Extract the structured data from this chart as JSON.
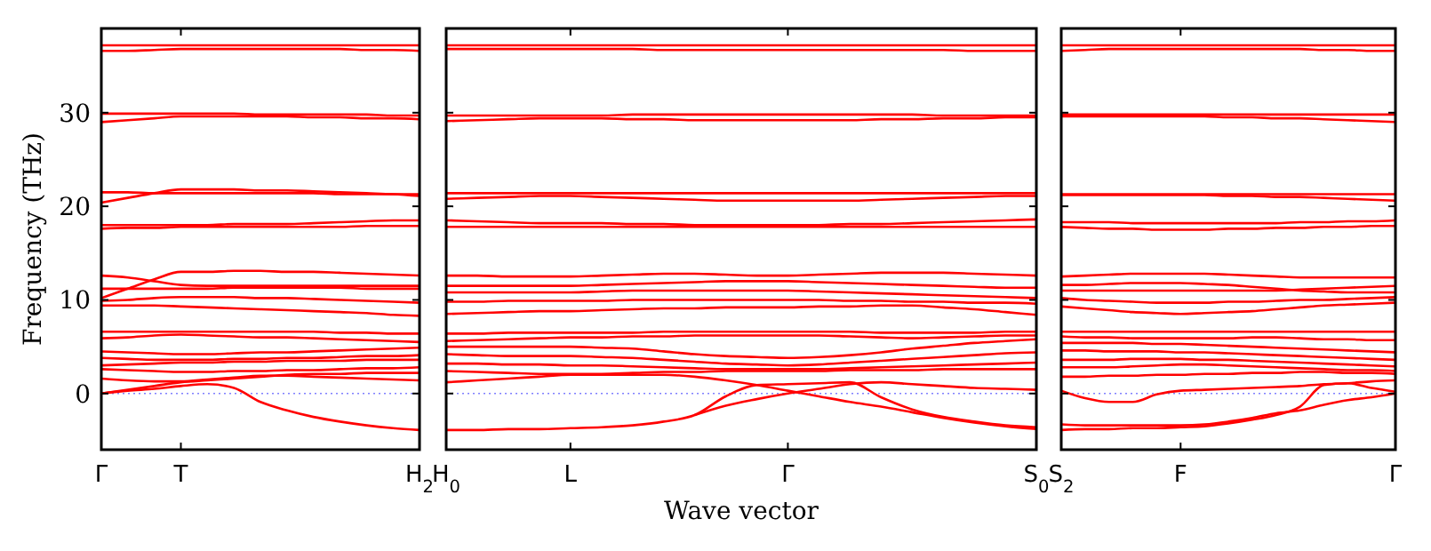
{
  "chart_data": [
    {
      "type": "line",
      "ylabel": "Frequency (THz)",
      "categories": [
        "Γ",
        null,
        null,
        "T",
        null,
        null,
        null,
        null,
        null,
        null,
        null,
        null,
        "H$_{2}$"
      ],
      "ylim": [
        -6,
        39
      ],
      "yticks": [
        0,
        10,
        20,
        30
      ],
      "ref_lines": [
        {
          "axis": "y",
          "value": 0,
          "color": "#8080ff",
          "line_style": "dotted"
        }
      ],
      "series": [
        {
          "color": "#ff0000",
          "values": [
            37.2,
            37.2,
            37.2,
            37.2,
            37.2,
            37.2,
            37.2,
            37.2,
            37.2,
            37.2,
            37.2,
            37.2,
            37.2
          ]
        },
        {
          "color": "#ff0000",
          "values": [
            36.6,
            36.6,
            36.7,
            36.8,
            36.8,
            36.8,
            36.8,
            36.8,
            36.8,
            36.8,
            36.7,
            36.7,
            36.6
          ]
        },
        {
          "color": "#ff0000",
          "values": [
            29.9,
            29.9,
            29.9,
            29.9,
            29.9,
            29.9,
            29.8,
            29.8,
            29.8,
            29.8,
            29.8,
            29.7,
            29.7
          ]
        },
        {
          "color": "#ff0000",
          "values": [
            29.0,
            29.2,
            29.4,
            29.6,
            29.6,
            29.6,
            29.6,
            29.6,
            29.5,
            29.5,
            29.4,
            29.4,
            29.3
          ]
        },
        {
          "color": "#ff0000",
          "values": [
            21.5,
            21.5,
            21.4,
            21.4,
            21.4,
            21.4,
            21.4,
            21.4,
            21.4,
            21.3,
            21.3,
            21.3,
            21.3
          ]
        },
        {
          "color": "#ff0000",
          "values": [
            20.4,
            20.9,
            21.4,
            21.8,
            21.8,
            21.8,
            21.7,
            21.7,
            21.6,
            21.5,
            21.4,
            21.3,
            21.1
          ]
        },
        {
          "color": "#ff0000",
          "values": [
            18.0,
            18.0,
            18.0,
            18.0,
            18.0,
            18.1,
            18.1,
            18.1,
            18.2,
            18.3,
            18.4,
            18.5,
            18.5
          ]
        },
        {
          "color": "#ff0000",
          "values": [
            17.6,
            17.7,
            17.7,
            17.8,
            17.8,
            17.8,
            17.8,
            17.8,
            17.8,
            17.8,
            17.9,
            17.9,
            17.9
          ]
        },
        {
          "color": "#ff0000",
          "values": [
            10.2,
            11.2,
            12.2,
            13.0,
            13.0,
            13.1,
            13.1,
            13.0,
            13.0,
            12.9,
            12.8,
            12.7,
            12.6
          ]
        },
        {
          "color": "#ff0000",
          "values": [
            12.6,
            12.4,
            12.0,
            11.6,
            11.5,
            11.5,
            11.5,
            11.5,
            11.5,
            11.5,
            11.5,
            11.5,
            11.5
          ]
        },
        {
          "color": "#ff0000",
          "values": [
            11.2,
            11.2,
            11.2,
            11.2,
            11.2,
            11.3,
            11.3,
            11.3,
            11.3,
            11.3,
            11.2,
            11.2,
            11.2
          ]
        },
        {
          "color": "#ff0000",
          "values": [
            9.9,
            10.0,
            10.2,
            10.3,
            10.3,
            10.3,
            10.2,
            10.2,
            10.1,
            10.0,
            9.9,
            9.8,
            9.7
          ]
        },
        {
          "color": "#ff0000",
          "values": [
            9.4,
            9.4,
            9.4,
            9.3,
            9.2,
            9.1,
            9.0,
            8.9,
            8.8,
            8.7,
            8.6,
            8.4,
            8.3
          ]
        },
        {
          "color": "#ff0000",
          "values": [
            6.6,
            6.6,
            6.6,
            6.6,
            6.6,
            6.6,
            6.6,
            6.6,
            6.6,
            6.5,
            6.5,
            6.4,
            6.4
          ]
        },
        {
          "color": "#ff0000",
          "values": [
            5.9,
            6.0,
            6.2,
            6.3,
            6.2,
            6.1,
            6.0,
            6.0,
            5.9,
            5.8,
            5.7,
            5.6,
            5.5
          ]
        },
        {
          "color": "#ff0000",
          "values": [
            4.5,
            4.4,
            4.3,
            4.2,
            4.2,
            4.3,
            4.4,
            4.4,
            4.5,
            4.6,
            4.7,
            4.8,
            4.9
          ]
        },
        {
          "color": "#ff0000",
          "values": [
            3.8,
            3.7,
            3.6,
            3.6,
            3.6,
            3.7,
            3.7,
            3.8,
            3.8,
            3.9,
            4.0,
            4.0,
            4.1
          ]
        },
        {
          "color": "#ff0000",
          "values": [
            3.0,
            3.1,
            3.2,
            3.3,
            3.3,
            3.4,
            3.4,
            3.5,
            3.5,
            3.5,
            3.6,
            3.6,
            3.6
          ]
        },
        {
          "color": "#ff0000",
          "values": [
            2.6,
            2.5,
            2.4,
            2.3,
            2.3,
            2.4,
            2.4,
            2.5,
            2.5,
            2.6,
            2.7,
            2.7,
            2.8
          ]
        },
        {
          "color": "#ff0000",
          "values": [
            1.6,
            1.4,
            1.3,
            1.3,
            1.5,
            1.7,
            1.9,
            1.9,
            1.8,
            1.7,
            1.6,
            1.5,
            1.4
          ]
        },
        {
          "color": "#ff0000",
          "values": [
            0,
            0.4,
            0.8,
            1.2,
            1.4,
            1.6,
            1.8,
            2.0,
            2.1,
            2.1,
            2.2,
            2.2,
            2.2
          ]
        },
        {
          "color": "#ff0000",
          "values": [
            0,
            0.3,
            0.5,
            0.8,
            1.0,
            0.6,
            -0.9,
            -1.8,
            -2.5,
            -3.0,
            -3.4,
            -3.7,
            -3.9
          ]
        }
      ]
    },
    {
      "type": "line",
      "xlabel": "Wave vector",
      "categories": [
        "H$_{0}$",
        null,
        null,
        null,
        "L",
        null,
        null,
        null,
        null,
        null,
        null,
        "Γ",
        null,
        null,
        null,
        null,
        null,
        null,
        null,
        "S$_{0}$"
      ],
      "ylim": [
        -6,
        39
      ],
      "yticks": [
        0,
        10,
        20,
        30
      ],
      "tick_labels": "x",
      "ref_lines": [
        {
          "axis": "y",
          "value": 0,
          "color": "#8080ff",
          "line_style": "dotted"
        }
      ],
      "series": [
        {
          "color": "#ff0000",
          "values": [
            37.2,
            37.2,
            37.2,
            37.2,
            37.2,
            37.2,
            37.2,
            37.2,
            37.2,
            37.2,
            37.2,
            37.2,
            37.2,
            37.2,
            37.2,
            37.2,
            37.2,
            37.2,
            37.2,
            37.2
          ]
        },
        {
          "color": "#ff0000",
          "values": [
            36.8,
            36.8,
            36.8,
            36.8,
            36.8,
            36.8,
            36.8,
            36.7,
            36.7,
            36.7,
            36.7,
            36.7,
            36.7,
            36.7,
            36.7,
            36.7,
            36.7,
            36.6,
            36.6,
            36.6
          ]
        },
        {
          "color": "#ff0000",
          "values": [
            29.7,
            29.7,
            29.7,
            29.7,
            29.7,
            29.7,
            29.8,
            29.8,
            29.8,
            29.8,
            29.8,
            29.8,
            29.8,
            29.8,
            29.8,
            29.8,
            29.7,
            29.7,
            29.7,
            29.7
          ]
        },
        {
          "color": "#ff0000",
          "values": [
            29.1,
            29.2,
            29.3,
            29.4,
            29.4,
            29.4,
            29.3,
            29.3,
            29.2,
            29.2,
            29.2,
            29.2,
            29.2,
            29.2,
            29.3,
            29.3,
            29.4,
            29.4,
            29.5,
            29.5
          ]
        },
        {
          "color": "#ff0000",
          "values": [
            21.4,
            21.4,
            21.4,
            21.4,
            21.4,
            21.4,
            21.4,
            21.4,
            21.4,
            21.4,
            21.4,
            21.4,
            21.4,
            21.4,
            21.4,
            21.4,
            21.4,
            21.4,
            21.4,
            21.4
          ]
        },
        {
          "color": "#ff0000",
          "values": [
            20.8,
            20.9,
            21.0,
            21.1,
            21.1,
            21.0,
            20.9,
            20.8,
            20.7,
            20.6,
            20.6,
            20.6,
            20.6,
            20.6,
            20.7,
            20.8,
            20.9,
            21.0,
            21.1,
            21.1
          ]
        },
        {
          "color": "#ff0000",
          "values": [
            18.5,
            18.4,
            18.3,
            18.2,
            18.2,
            18.2,
            18.1,
            18.1,
            18.0,
            18.0,
            18.0,
            18.0,
            18.0,
            18.1,
            18.1,
            18.2,
            18.3,
            18.4,
            18.5,
            18.6
          ]
        },
        {
          "color": "#ff0000",
          "values": [
            17.8,
            17.8,
            17.8,
            17.8,
            17.8,
            17.8,
            17.8,
            17.8,
            17.8,
            17.8,
            17.8,
            17.8,
            17.8,
            17.8,
            17.8,
            17.8,
            17.8,
            17.8,
            17.8,
            17.8
          ]
        },
        {
          "color": "#ff0000",
          "values": [
            12.6,
            12.6,
            12.5,
            12.5,
            12.5,
            12.6,
            12.7,
            12.8,
            12.8,
            12.7,
            12.6,
            12.6,
            12.7,
            12.8,
            12.9,
            12.9,
            12.9,
            12.8,
            12.7,
            12.6
          ]
        },
        {
          "color": "#ff0000",
          "values": [
            11.5,
            11.5,
            11.5,
            11.5,
            11.5,
            11.6,
            11.7,
            11.8,
            11.9,
            12.0,
            12.0,
            12.0,
            11.9,
            11.8,
            11.7,
            11.6,
            11.5,
            11.4,
            11.3,
            11.3
          ]
        },
        {
          "color": "#ff0000",
          "values": [
            10.8,
            10.8,
            10.8,
            10.8,
            10.8,
            10.9,
            11.0,
            11.0,
            11.0,
            11.0,
            11.0,
            11.0,
            10.9,
            10.8,
            10.7,
            10.6,
            10.5,
            10.4,
            10.3,
            10.2
          ]
        },
        {
          "color": "#ff0000",
          "values": [
            9.8,
            9.8,
            9.9,
            9.9,
            9.9,
            9.9,
            10.0,
            10.0,
            10.0,
            10.0,
            10.0,
            10.0,
            10.0,
            9.9,
            9.9,
            9.8,
            9.8,
            9.7,
            9.7,
            9.6
          ]
        },
        {
          "color": "#ff0000",
          "values": [
            8.5,
            8.6,
            8.7,
            8.8,
            8.8,
            8.9,
            9.0,
            9.1,
            9.1,
            9.2,
            9.2,
            9.2,
            9.3,
            9.3,
            9.4,
            9.4,
            9.2,
            9.0,
            8.7,
            8.4
          ]
        },
        {
          "color": "#ff0000",
          "values": [
            6.4,
            6.4,
            6.5,
            6.5,
            6.5,
            6.5,
            6.5,
            6.6,
            6.6,
            6.6,
            6.6,
            6.6,
            6.6,
            6.6,
            6.5,
            6.5,
            6.5,
            6.5,
            6.6,
            6.6
          ]
        },
        {
          "color": "#ff0000",
          "values": [
            5.6,
            5.7,
            5.8,
            5.9,
            6.0,
            6.0,
            6.1,
            6.1,
            6.2,
            6.2,
            6.2,
            6.2,
            6.2,
            6.1,
            6.0,
            5.9,
            6.0,
            6.1,
            6.2,
            6.2
          ]
        },
        {
          "color": "#ff0000",
          "values": [
            5.0,
            5.0,
            5.0,
            5.0,
            5.0,
            4.9,
            4.8,
            4.5,
            4.2,
            4.0,
            3.9,
            3.8,
            3.9,
            4.1,
            4.4,
            4.8,
            5.1,
            5.4,
            5.6,
            5.8
          ]
        },
        {
          "color": "#ff0000",
          "values": [
            4.2,
            4.1,
            4.0,
            4.0,
            4.0,
            3.9,
            3.8,
            3.6,
            3.4,
            3.2,
            3.1,
            3.0,
            3.1,
            3.3,
            3.5,
            3.7,
            3.9,
            4.1,
            4.3,
            4.4
          ]
        },
        {
          "color": "#ff0000",
          "values": [
            3.2,
            3.2,
            3.1,
            3.1,
            3.0,
            3.0,
            2.9,
            2.8,
            2.7,
            2.6,
            2.6,
            2.6,
            2.6,
            2.7,
            2.8,
            2.9,
            3.0,
            3.1,
            3.2,
            3.3
          ]
        },
        {
          "color": "#ff0000",
          "values": [
            2.4,
            2.3,
            2.2,
            2.1,
            2.1,
            2.1,
            2.2,
            2.3,
            2.3,
            2.4,
            2.4,
            2.4,
            2.4,
            2.5,
            2.5,
            2.5,
            2.6,
            2.6,
            2.6,
            2.6
          ]
        },
        {
          "color": "#ff0000",
          "values": [
            1.2,
            1.4,
            1.6,
            1.8,
            2.0,
            2.0,
            2.0,
            2.0,
            1.8,
            1.4,
            0.9,
            0.3,
            -0.3,
            -0.9,
            -1.4,
            -2.0,
            -2.6,
            -3.1,
            -3.5,
            -3.8
          ]
        },
        {
          "color": "#ff0000",
          "values": [
            -3.9,
            -3.9,
            -3.8,
            -3.8,
            -3.7,
            -3.6,
            -3.4,
            -3.0,
            -2.3,
            -0.3,
            0.9,
            1.0,
            1.1,
            1.2,
            -0.4,
            -1.7,
            -2.5,
            -3.0,
            -3.4,
            -3.6
          ]
        },
        {
          "color": "#ff0000",
          "values": [
            null,
            null,
            null,
            null,
            null,
            null,
            null,
            null,
            -2.3,
            -1.3,
            -0.6,
            0,
            0.5,
            1.0,
            1.2,
            1.0,
            0.8,
            0.6,
            0.5,
            0.4
          ]
        }
      ]
    },
    {
      "type": "line",
      "categories": [
        "S$_{2}$",
        null,
        null,
        null,
        null,
        "F",
        null,
        null,
        null,
        null,
        null,
        null,
        null,
        null,
        "Γ"
      ],
      "ylim": [
        -6,
        39
      ],
      "yticks": [
        0,
        10,
        20,
        30
      ],
      "tick_labels": "x",
      "ref_lines": [
        {
          "axis": "y",
          "value": 0,
          "color": "#8080ff",
          "line_style": "dotted"
        }
      ],
      "series": [
        {
          "color": "#ff0000",
          "values": [
            37.2,
            37.2,
            37.2,
            37.2,
            37.2,
            37.2,
            37.2,
            37.2,
            37.2,
            37.2,
            37.2,
            37.2,
            37.2,
            37.2,
            37.2
          ]
        },
        {
          "color": "#ff0000",
          "values": [
            36.6,
            36.7,
            36.8,
            36.8,
            36.8,
            36.8,
            36.8,
            36.8,
            36.8,
            36.8,
            36.8,
            36.7,
            36.7,
            36.6,
            36.6
          ]
        },
        {
          "color": "#ff0000",
          "values": [
            29.8,
            29.8,
            29.8,
            29.8,
            29.8,
            29.8,
            29.8,
            29.8,
            29.8,
            29.8,
            29.8,
            29.8,
            29.8,
            29.8,
            29.8
          ]
        },
        {
          "color": "#ff0000",
          "values": [
            29.6,
            29.6,
            29.6,
            29.6,
            29.6,
            29.6,
            29.6,
            29.5,
            29.5,
            29.4,
            29.4,
            29.3,
            29.2,
            29.1,
            29.0
          ]
        },
        {
          "color": "#ff0000",
          "values": [
            21.3,
            21.3,
            21.3,
            21.3,
            21.3,
            21.3,
            21.3,
            21.3,
            21.3,
            21.3,
            21.3,
            21.3,
            21.3,
            21.3,
            21.3
          ]
        },
        {
          "color": "#ff0000",
          "values": [
            21.2,
            21.2,
            21.2,
            21.2,
            21.2,
            21.2,
            21.2,
            21.1,
            21.1,
            21.0,
            21.0,
            20.9,
            20.8,
            20.7,
            20.6
          ]
        },
        {
          "color": "#ff0000",
          "values": [
            18.3,
            18.3,
            18.3,
            18.2,
            18.2,
            18.2,
            18.2,
            18.2,
            18.2,
            18.2,
            18.3,
            18.3,
            18.4,
            18.4,
            18.5
          ]
        },
        {
          "color": "#ff0000",
          "values": [
            17.8,
            17.7,
            17.6,
            17.6,
            17.5,
            17.5,
            17.5,
            17.6,
            17.6,
            17.7,
            17.7,
            17.8,
            17.8,
            17.9,
            17.9
          ]
        },
        {
          "color": "#ff0000",
          "values": [
            12.5,
            12.6,
            12.7,
            12.8,
            12.8,
            12.8,
            12.8,
            12.7,
            12.6,
            12.5,
            12.4,
            12.4,
            12.4,
            12.4,
            12.4
          ]
        },
        {
          "color": "#ff0000",
          "values": [
            11.6,
            11.6,
            11.7,
            11.8,
            11.8,
            11.8,
            11.7,
            11.6,
            11.4,
            11.2,
            11.0,
            10.9,
            10.8,
            10.8,
            10.8
          ]
        },
        {
          "color": "#ff0000",
          "values": [
            11.0,
            11.0,
            11.0,
            11.0,
            11.0,
            11.0,
            11.0,
            11.0,
            11.0,
            11.0,
            11.1,
            11.2,
            11.3,
            11.4,
            11.5
          ]
        },
        {
          "color": "#ff0000",
          "values": [
            10.2,
            10.0,
            9.9,
            9.8,
            9.7,
            9.7,
            9.7,
            9.8,
            9.8,
            9.9,
            10.0,
            10.0,
            10.1,
            10.2,
            10.3
          ]
        },
        {
          "color": "#ff0000",
          "values": [
            9.3,
            9.1,
            8.9,
            8.7,
            8.6,
            8.5,
            8.6,
            8.7,
            8.8,
            9.0,
            9.2,
            9.4,
            9.5,
            9.6,
            9.7
          ]
        },
        {
          "color": "#ff0000",
          "values": [
            6.6,
            6.6,
            6.6,
            6.6,
            6.6,
            6.6,
            6.6,
            6.6,
            6.6,
            6.6,
            6.6,
            6.6,
            6.6,
            6.6,
            6.6
          ]
        },
        {
          "color": "#ff0000",
          "values": [
            6.1,
            6.0,
            6.0,
            5.9,
            5.9,
            5.9,
            5.9,
            5.9,
            6.0,
            6.0,
            5.9,
            5.8,
            5.8,
            5.7,
            5.7
          ]
        },
        {
          "color": "#ff0000",
          "values": [
            5.4,
            5.4,
            5.4,
            5.4,
            5.3,
            5.3,
            5.2,
            5.1,
            5.0,
            4.9,
            4.8,
            4.7,
            4.6,
            4.5,
            4.4
          ]
        },
        {
          "color": "#ff0000",
          "values": [
            4.6,
            4.6,
            4.5,
            4.5,
            4.5,
            4.4,
            4.4,
            4.3,
            4.2,
            4.1,
            4.0,
            3.9,
            3.8,
            3.7,
            3.6
          ]
        },
        {
          "color": "#ff0000",
          "values": [
            3.6,
            3.6,
            3.6,
            3.7,
            3.7,
            3.7,
            3.6,
            3.6,
            3.5,
            3.4,
            3.3,
            3.2,
            3.1,
            3.0,
            2.9
          ]
        },
        {
          "color": "#ff0000",
          "values": [
            2.8,
            2.8,
            2.8,
            2.9,
            3.0,
            3.1,
            3.1,
            3.0,
            2.9,
            2.8,
            2.7,
            2.6,
            2.5,
            2.5,
            2.4
          ]
        },
        {
          "color": "#ff0000",
          "values": [
            1.8,
            1.8,
            1.9,
            1.9,
            2.0,
            2.0,
            2.1,
            2.1,
            2.2,
            2.2,
            2.3,
            2.3,
            2.2,
            2.2,
            2.1
          ]
        },
        {
          "color": "#ff0000",
          "values": [
            0.3,
            -0.5,
            -0.9,
            -0.9,
            -0.1,
            0.3,
            0.4,
            0.5,
            0.6,
            0.7,
            0.8,
            1.0,
            1.1,
            1.3,
            1.4
          ]
        },
        {
          "color": "#ff0000",
          "values": [
            -3.9,
            -3.8,
            -3.8,
            -3.7,
            -3.7,
            -3.6,
            -3.5,
            -3.2,
            -2.8,
            -2.3,
            -1.4,
            0.9,
            1.1,
            0.6,
            0.2
          ]
        },
        {
          "color": "#ff0000",
          "values": [
            -3.3,
            -3.4,
            -3.4,
            -3.4,
            -3.4,
            -3.4,
            -3.3,
            -3.0,
            -2.6,
            -2.1,
            -1.8,
            -1.2,
            -0.7,
            -0.4,
            0
          ]
        }
      ]
    }
  ]
}
